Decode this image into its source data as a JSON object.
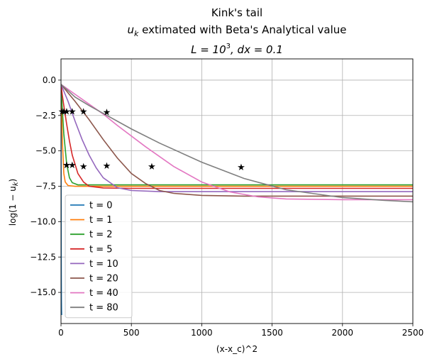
{
  "chart_data": {
    "type": "line",
    "title_line1": "Kink's tail",
    "title_line2_prefix": "u",
    "title_line2_sub": "k",
    "title_line2_rest": " extimated with Beta's Analytical value",
    "title_line3_L": "L = 10",
    "title_line3_exp": "3",
    "title_line3_rest": ", dx = 0.1",
    "xlabel": "(x-x_c)^2",
    "ylabel_prefix": "log(1 − u",
    "ylabel_sub": "k",
    "ylabel_suffix": ")",
    "xlim": [
      0,
      2500
    ],
    "ylim": [
      -17.2,
      1.5
    ],
    "xticks": [
      0,
      500,
      1000,
      1500,
      2000,
      2500
    ],
    "yticks": [
      0.0,
      -2.5,
      -5.0,
      -7.5,
      -10.0,
      -12.5,
      -15.0
    ],
    "ytick_labels": [
      "0.0",
      "−2.5",
      "−5.0",
      "−7.5",
      "−10.0",
      "−12.5",
      "−15.0"
    ],
    "grid": true,
    "legend_position": "lower-left",
    "series": [
      {
        "name": "t = 0",
        "color": "#1f77b4",
        "x": [
          0,
          0.3,
          0.6,
          1,
          1.5,
          2.2,
          3,
          4,
          5
        ],
        "y": [
          -0.3,
          -3.5,
          -6.5,
          -9.2,
          -11.8,
          -14.0,
          -15.5,
          -16.3,
          -16.6
        ],
        "stars": []
      },
      {
        "name": "t = 1",
        "color": "#ff7f0e",
        "x": [
          0,
          2,
          5,
          10,
          20,
          30,
          50,
          100,
          500,
          1000,
          2500
        ],
        "y": [
          -0.3,
          -1.2,
          -2.5,
          -4.4,
          -6.6,
          -7.2,
          -7.45,
          -7.5,
          -7.5,
          -7.5,
          -7.5
        ],
        "stars": [
          [
            8,
            -2.2
          ],
          [
            40,
            -6.0
          ]
        ]
      },
      {
        "name": "t = 2",
        "color": "#2ca02c",
        "x": [
          0,
          5,
          10,
          20,
          40,
          60,
          80,
          120,
          500,
          1000,
          2500
        ],
        "y": [
          -0.3,
          -1.2,
          -2.2,
          -3.8,
          -5.9,
          -6.9,
          -7.25,
          -7.4,
          -7.4,
          -7.4,
          -7.4
        ],
        "stars": [
          [
            20,
            -2.2
          ],
          [
            40,
            -6.0
          ]
        ]
      },
      {
        "name": "t = 5",
        "color": "#d62728",
        "x": [
          0,
          10,
          20,
          40,
          60,
          80,
          120,
          160,
          200,
          300,
          500,
          1000,
          2500
        ],
        "y": [
          -0.3,
          -1.1,
          -1.8,
          -3.1,
          -4.3,
          -5.3,
          -6.6,
          -7.2,
          -7.5,
          -7.62,
          -7.65,
          -7.65,
          -7.65
        ],
        "stars": [
          [
            40,
            -2.2
          ],
          [
            80,
            -6.0
          ]
        ]
      },
      {
        "name": "t = 10",
        "color": "#9467bd",
        "x": [
          0,
          25,
          50,
          100,
          150,
          200,
          250,
          300,
          400,
          500,
          700,
          1000,
          2500
        ],
        "y": [
          -0.3,
          -0.9,
          -1.5,
          -2.9,
          -4.2,
          -5.3,
          -6.2,
          -6.9,
          -7.6,
          -7.8,
          -7.88,
          -7.88,
          -7.88
        ],
        "stars": [
          [
            80,
            -2.2
          ],
          [
            160,
            -6.1
          ]
        ]
      },
      {
        "name": "t = 20",
        "color": "#8c564b",
        "x": [
          0,
          50,
          100,
          200,
          300,
          400,
          500,
          600,
          700,
          800,
          1000,
          1300,
          2500
        ],
        "y": [
          -0.3,
          -0.9,
          -1.5,
          -2.8,
          -4.2,
          -5.5,
          -6.6,
          -7.3,
          -7.8,
          -8.0,
          -8.15,
          -8.2,
          -8.2
        ],
        "stars": [
          [
            160,
            -2.2
          ],
          [
            325,
            -6.05
          ]
        ]
      },
      {
        "name": "t = 40",
        "color": "#e377c2",
        "x": [
          0,
          100,
          200,
          300,
          400,
          600,
          800,
          1000,
          1200,
          1400,
          1600,
          2000,
          2500
        ],
        "y": [
          -0.3,
          -1.0,
          -1.7,
          -2.4,
          -3.2,
          -4.7,
          -6.1,
          -7.2,
          -7.9,
          -8.25,
          -8.4,
          -8.45,
          -8.45
        ],
        "stars": [
          [
            325,
            -2.25
          ],
          [
            645,
            -6.1
          ]
        ]
      },
      {
        "name": "t = 80",
        "color": "#7f7f7f",
        "x": [
          0,
          100,
          200,
          300,
          500,
          700,
          1000,
          1300,
          1600,
          2000,
          2300,
          2500
        ],
        "y": [
          -0.3,
          -1.2,
          -1.8,
          -2.35,
          -3.45,
          -4.45,
          -5.8,
          -6.95,
          -7.75,
          -8.3,
          -8.5,
          -8.6
        ],
        "stars": [
          [
            1280,
            -6.15
          ]
        ]
      }
    ]
  }
}
